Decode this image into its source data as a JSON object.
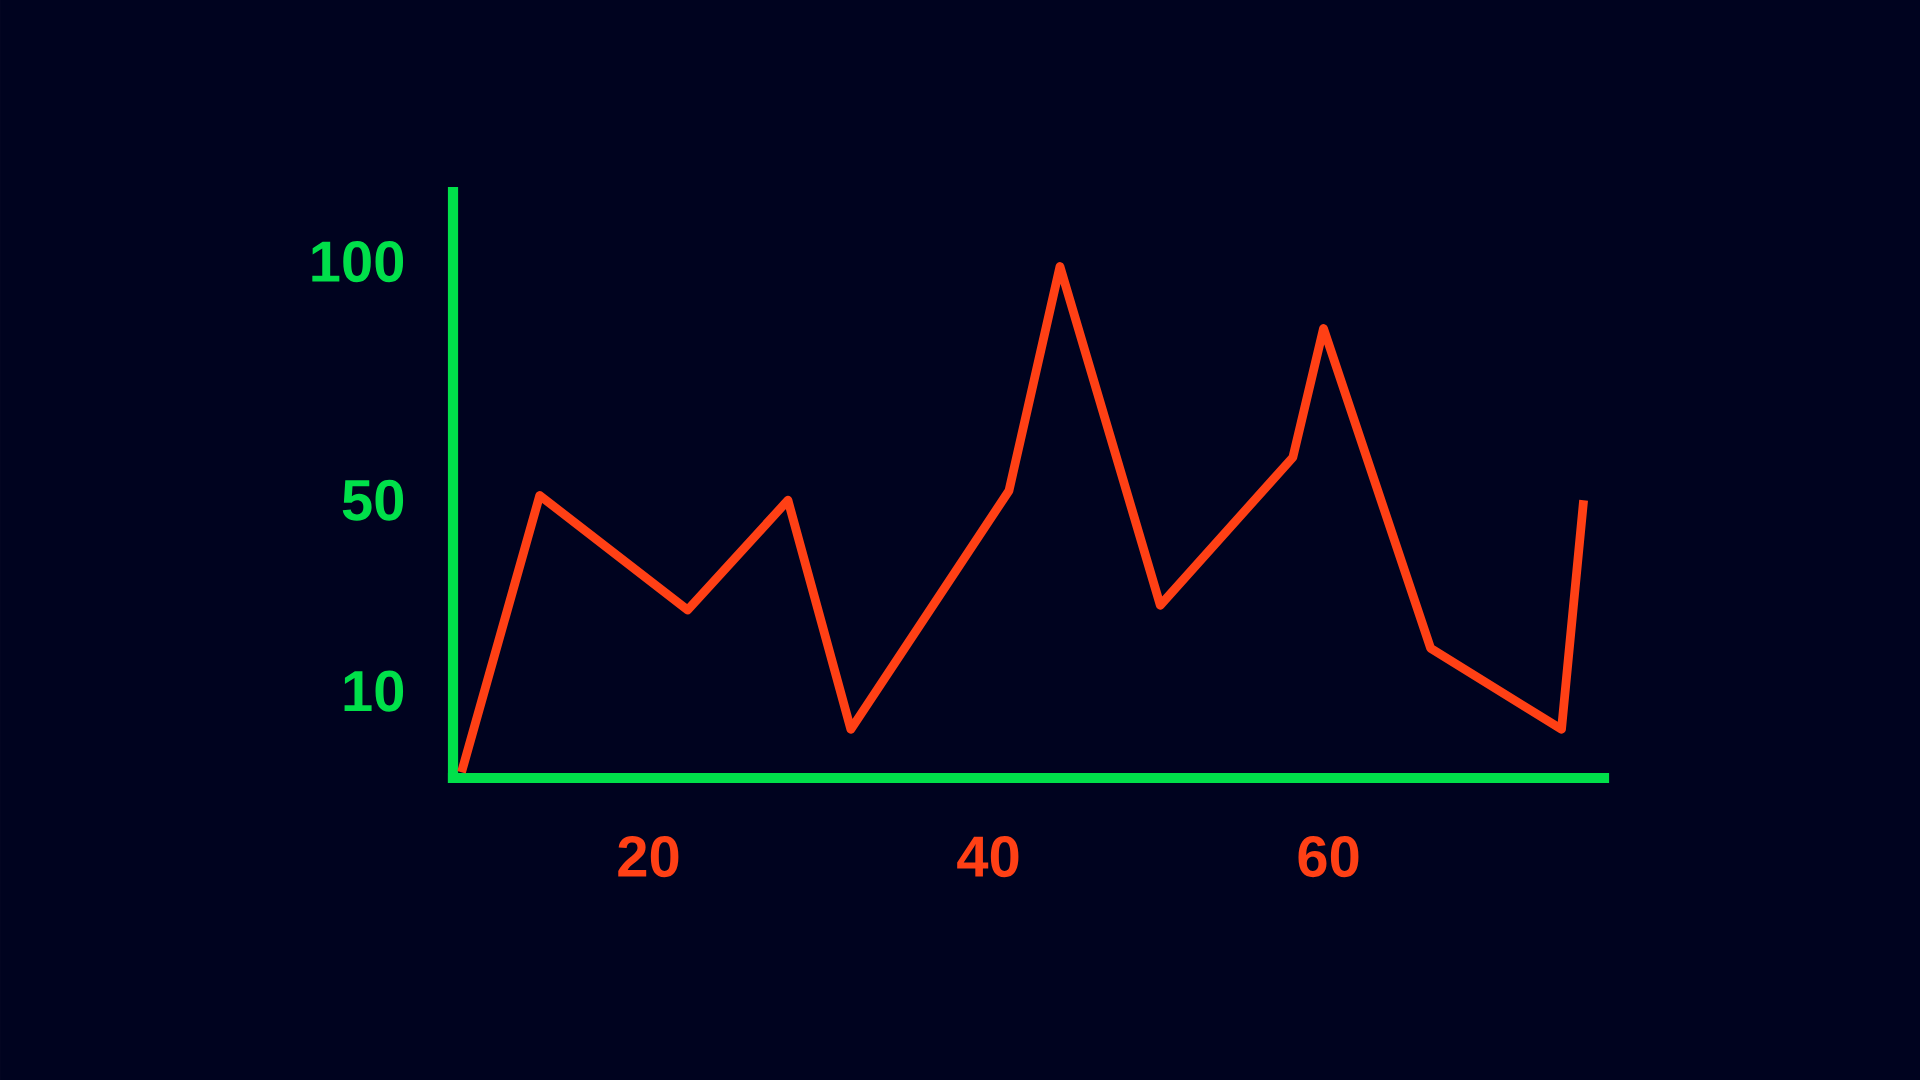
{
  "chart_data": {
    "type": "line",
    "x": [
      9.0,
      13.6,
      22.3,
      28.2,
      31.9,
      41.2,
      44.2,
      50.1,
      57.9,
      59.7,
      66.0,
      73.7,
      75.0
    ],
    "series": [
      {
        "color": "#ff4015",
        "values": [
          -7,
          51,
          27,
          50,
          2,
          52,
          99,
          28,
          59,
          86,
          19,
          2,
          50
        ]
      }
    ],
    "xlim": [
      8.5,
      76.2
    ],
    "ylim": [
      -8.2,
      114.6
    ],
    "xticks": [
      20,
      40,
      60
    ],
    "yticks": [
      10,
      50,
      100
    ],
    "marker": "none",
    "line_style": "solid"
  }
}
